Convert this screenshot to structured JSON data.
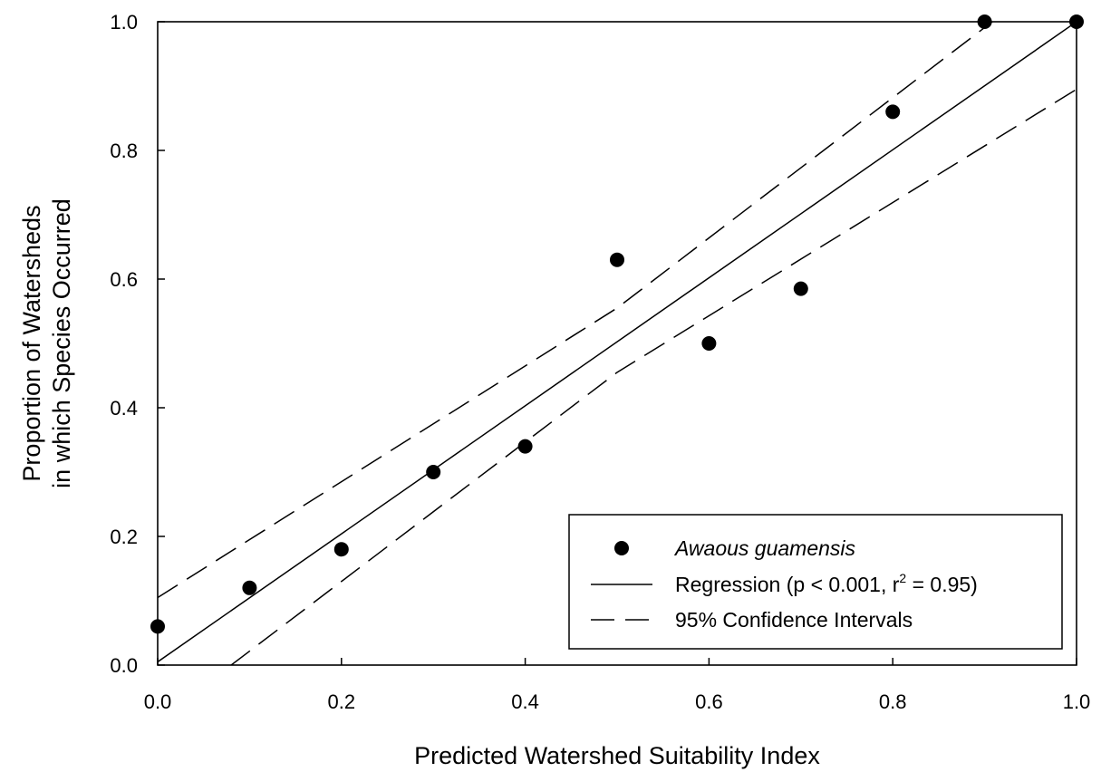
{
  "chart_data": {
    "type": "scatter",
    "xlabel": "Predicted Watershed Suitability Index",
    "ylabel_line1": "Proportion of Watersheds",
    "ylabel_line2": "in which Species Occurred",
    "xlim": [
      0.0,
      1.0
    ],
    "ylim": [
      0.0,
      1.0
    ],
    "xticks": [
      "0.0",
      "0.2",
      "0.4",
      "0.6",
      "0.8",
      "1.0"
    ],
    "yticks": [
      "0.0",
      "0.2",
      "0.4",
      "0.6",
      "0.8",
      "1.0"
    ],
    "grid": false,
    "legend_position": "bottom-right",
    "series": [
      {
        "name": "Awaous guamensis",
        "kind": "points",
        "x": [
          0.0,
          0.1,
          0.2,
          0.3,
          0.4,
          0.5,
          0.6,
          0.7,
          0.8,
          0.9,
          1.0
        ],
        "y": [
          0.06,
          0.12,
          0.18,
          0.3,
          0.34,
          0.63,
          0.5,
          0.585,
          0.86,
          1.0,
          1.0
        ]
      },
      {
        "name_prefix": "Regression (p < 0.001, r",
        "name_sup": "2",
        "name_suffix": " = 0.95)",
        "kind": "line",
        "x": [
          0.0,
          1.0
        ],
        "y": [
          0.005,
          1.0
        ]
      },
      {
        "name": "95% Confidence Intervals",
        "kind": "dashed-band",
        "upper": {
          "x": [
            0.0,
            0.5,
            1.0
          ],
          "y": [
            0.105,
            0.555,
            1.1
          ]
        },
        "lower": {
          "x": [
            0.08,
            0.5,
            1.0
          ],
          "y": [
            0.0,
            0.455,
            0.895
          ]
        }
      }
    ]
  }
}
